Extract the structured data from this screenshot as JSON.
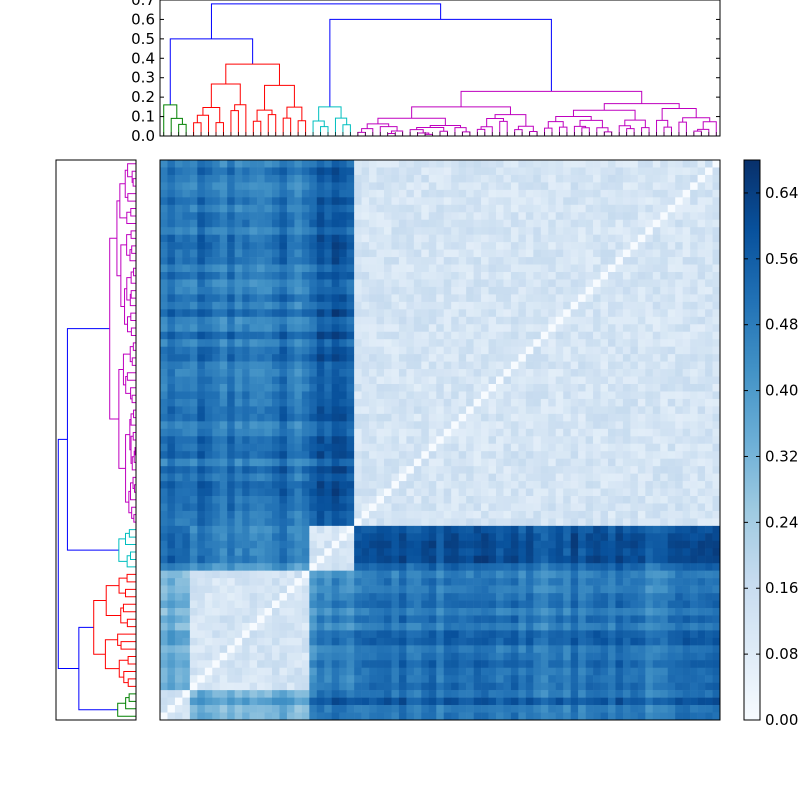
{
  "chart_data": [
    {
      "type": "dendrogram",
      "orientation": "top",
      "ylim": [
        0.0,
        0.7
      ],
      "yticks": [
        "0.0",
        "0.1",
        "0.2",
        "0.3",
        "0.4",
        "0.5",
        "0.6",
        "0.7"
      ],
      "cluster_colors": [
        "#008000",
        "#ff0000",
        "#00bfbf",
        "#bf00bf",
        "#0000ff"
      ],
      "clusters": [
        {
          "color": "#008000",
          "leaves": 4,
          "height": 0.16
        },
        {
          "color": "#ff0000",
          "leaves": 16,
          "height": 0.37
        },
        {
          "color": "#00bfbf",
          "leaves": 6,
          "height": 0.15
        },
        {
          "color": "#bf00bf",
          "leaves": 49,
          "height": 0.23
        }
      ],
      "top_links": [
        {
          "left": "green",
          "right": "red",
          "height": 0.5
        },
        {
          "left": "green+red",
          "right": "cyan+magenta",
          "height": 0.68
        },
        {
          "left": "cyan",
          "right": "magenta",
          "height": 0.6
        }
      ]
    },
    {
      "type": "dendrogram",
      "orientation": "left",
      "note_orientation": "same tree rotated"
    },
    {
      "type": "heatmap",
      "colormap": "Blues",
      "n": 75,
      "blocks": [
        "green",
        "red",
        "cyan",
        "magenta"
      ],
      "block_sizes": [
        4,
        16,
        6,
        49
      ],
      "within_block_value": 0.12,
      "between_block_values": {
        "green-red": 0.36,
        "green-cyan": 0.53,
        "green-magenta": 0.52,
        "red-cyan": 0.45,
        "red-magenta": 0.5,
        "cyan-magenta": 0.56
      }
    },
    {
      "type": "colorbar",
      "colormap": "Blues",
      "range": [
        0.0,
        0.68
      ],
      "ticks": [
        "0.00",
        "0.08",
        "0.16",
        "0.24",
        "0.32",
        "0.40",
        "0.48",
        "0.56",
        "0.64"
      ]
    }
  ]
}
